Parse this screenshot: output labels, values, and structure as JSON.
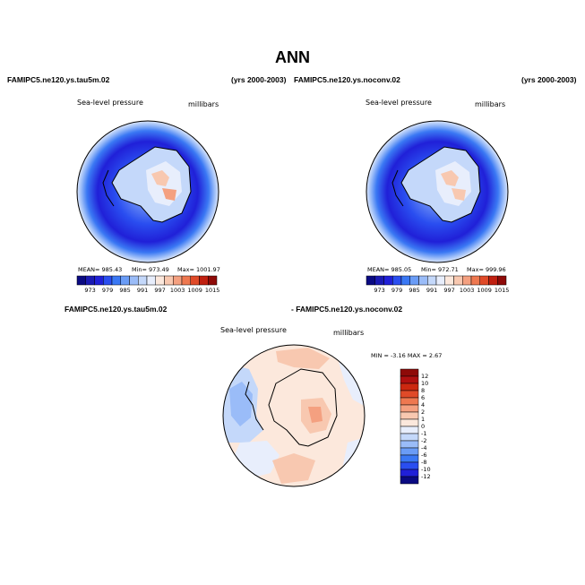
{
  "title": "ANN",
  "headers": {
    "left_case": "FAMIPC5.ne120.ys.tau5m.02",
    "left_years": "(yrs 2000-2003)",
    "right_case": "FAMIPC5.ne120.ys.noconv.02",
    "right_years": "(yrs 2000-2003)",
    "diff_case_a": "FAMIPC5.ne120.ys.tau5m.02",
    "diff_case_b": "- FAMIPC5.ne120.ys.noconv.02"
  },
  "panels": [
    {
      "variable": "Sea-level pressure",
      "units": "millibars",
      "stats": {
        "mean": "MEAN= 985.43",
        "min": "Min= 973.49",
        "max": "Max= 1001.97"
      }
    },
    {
      "variable": "Sea-level pressure",
      "units": "millibars",
      "stats": {
        "mean": "MEAN= 985.05",
        "min": "Min= 972.71",
        "max": "Max= 999.96"
      }
    }
  ],
  "diff_panel": {
    "variable": "Sea-level pressure",
    "units": "millibars",
    "minmax": "MIN =   -3.16  MAX =    2.67"
  },
  "colorbar_abs": {
    "tick_labels": [
      "973",
      "979",
      "985",
      "991",
      "997",
      "1003",
      "1009",
      "1015"
    ],
    "colors": [
      "#0a0a82",
      "#1a1ab4",
      "#2020d8",
      "#2a4ef0",
      "#3a78f4",
      "#6a9cf6",
      "#9abcf8",
      "#c4d8fa",
      "#e8eefc",
      "#fce8dc",
      "#f8c8b0",
      "#f4a080",
      "#ee7850",
      "#e04a28",
      "#c02010",
      "#8e0a08"
    ]
  },
  "colorbar_diff": {
    "tick_labels": [
      "12",
      "10",
      "8",
      "6",
      "4",
      "2",
      "1",
      "0",
      "-1",
      "-2",
      "-4",
      "-6",
      "-8",
      "-10",
      "-12"
    ],
    "colors": [
      "#8e0a08",
      "#b01010",
      "#cc2810",
      "#e04a28",
      "#ee7850",
      "#f4a080",
      "#f8c8b0",
      "#fce8dc",
      "#e8eefc",
      "#c4d8fa",
      "#9abcf8",
      "#6a9cf6",
      "#3a78f4",
      "#2a4ef0",
      "#2020d8",
      "#0a0a82"
    ]
  }
}
